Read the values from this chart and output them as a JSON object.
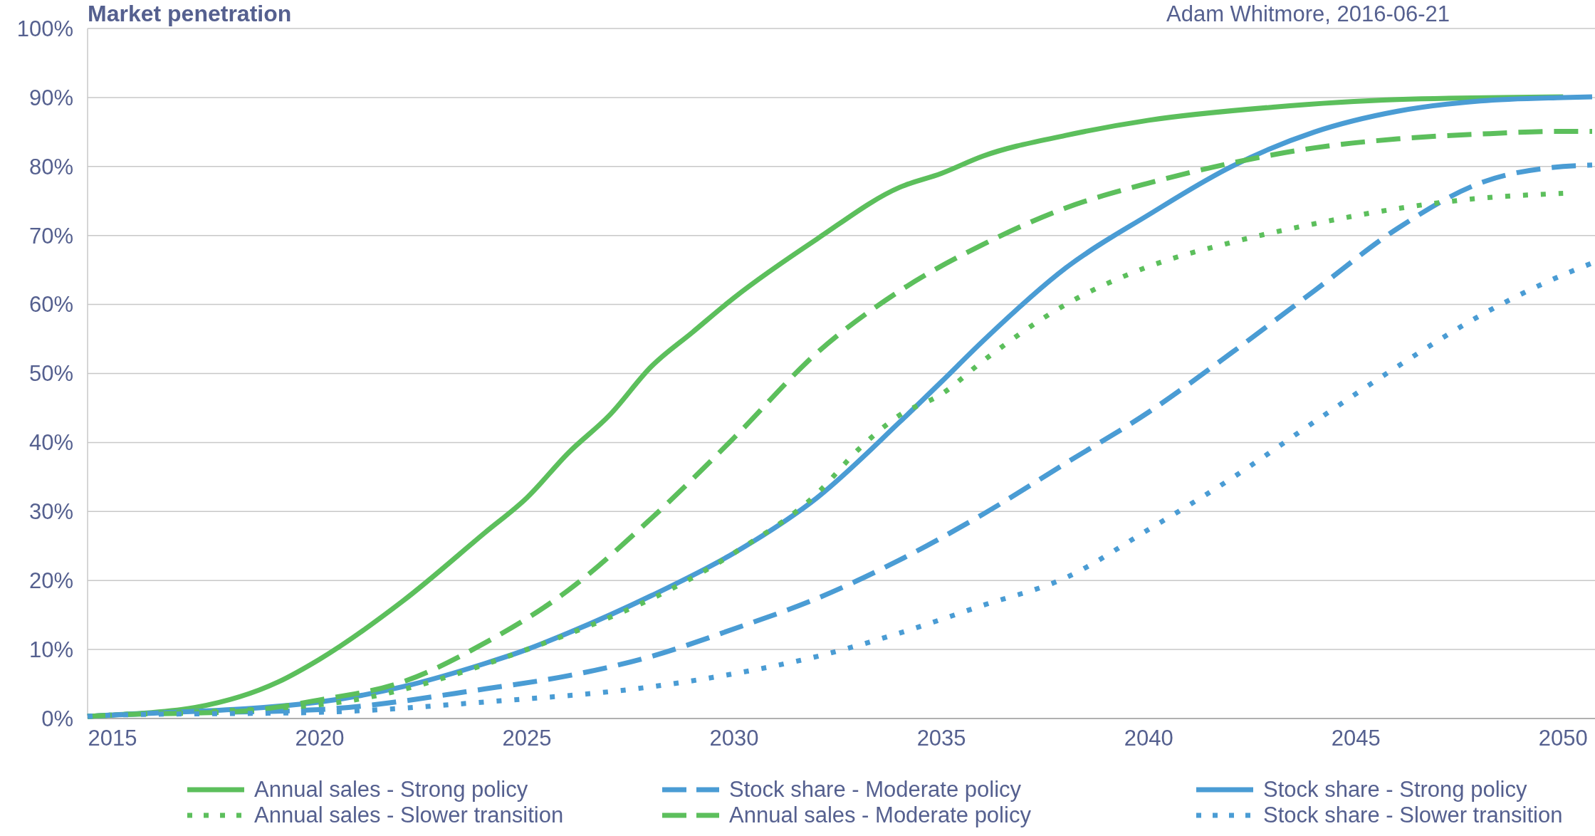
{
  "chart_data": {
    "type": "line",
    "title": "Market penetration",
    "annotations": [
      "Adam Whitmore, 2016-06-21"
    ],
    "xlim": [
      2014.4,
      2050.7
    ],
    "xticks": [
      2015,
      2020,
      2025,
      2030,
      2035,
      2040,
      2045,
      2050
    ],
    "ylim": [
      0,
      100
    ],
    "yticks": [
      {
        "value": 0,
        "label": "0%"
      },
      {
        "value": 10,
        "label": "10%"
      },
      {
        "value": 20,
        "label": "20%"
      },
      {
        "value": 30,
        "label": "30%"
      },
      {
        "value": 40,
        "label": "40%"
      },
      {
        "value": 50,
        "label": "50%"
      },
      {
        "value": 60,
        "label": "60%"
      },
      {
        "value": 70,
        "label": "70%"
      },
      {
        "value": 80,
        "label": "80%"
      },
      {
        "value": 90,
        "label": "90%"
      },
      {
        "value": 100,
        "label": "100%"
      }
    ],
    "grid": "y",
    "legend": "bottom",
    "marker": "none",
    "series": [
      {
        "name": "Annual sales - Strong policy",
        "color": "#5cbf5c",
        "line_style": "solid",
        "x": [
          2014.4,
          2015,
          2017,
          2019,
          2020,
          2022,
          2024,
          2025,
          2026,
          2027,
          2028,
          2029,
          2030,
          2032,
          2034,
          2035,
          2036,
          2038,
          2040,
          2043,
          2046,
          2050
        ],
        "values": [
          0.3,
          0.5,
          1.6,
          5.3,
          8.6,
          17,
          27,
          32,
          38.5,
          44,
          51,
          56,
          61,
          69.5,
          77,
          79,
          81.5,
          84.5,
          86.7,
          88.6,
          89.7,
          90.1
        ]
      },
      {
        "name": "Stock share - Moderate policy",
        "color": "#4a9cd4",
        "line_style": "dashed",
        "x": [
          2014.4,
          2015,
          2020,
          2024,
          2026,
          2028,
          2030,
          2032,
          2034,
          2036,
          2038,
          2040,
          2042,
          2044,
          2046,
          2048,
          2050,
          2050.7
        ],
        "values": [
          0.3,
          0.5,
          1.3,
          4.3,
          6.2,
          9,
          13,
          17.4,
          23,
          29.6,
          37,
          44.4,
          53,
          62,
          71,
          77.6,
          80,
          80.2
        ]
      },
      {
        "name": "Stock share - Strong policy",
        "color": "#4a9cd4",
        "line_style": "solid",
        "x": [
          2014.4,
          2015,
          2020,
          2022,
          2024,
          2025,
          2026,
          2028,
          2030,
          2032,
          2034,
          2035,
          2036,
          2038,
          2040,
          2042,
          2044,
          2046,
          2048,
          2050,
          2050.7
        ],
        "values": [
          0.3,
          0.5,
          2.4,
          4.6,
          8,
          10,
          12.4,
          17.8,
          24,
          32,
          43,
          48.8,
          54.7,
          65.3,
          73,
          80,
          85,
          88,
          89.5,
          90,
          90.1
        ]
      },
      {
        "name": "Annual sales - Slower transition",
        "color": "#5cbf5c",
        "line_style": "dotted",
        "x": [
          2014.4,
          2015,
          2020,
          2025,
          2030,
          2032,
          2033,
          2034,
          2035,
          2036,
          2038,
          2040,
          2042,
          2044,
          2046,
          2048,
          2050
        ],
        "values": [
          0.3,
          0.5,
          2,
          10,
          24,
          32.6,
          39,
          44,
          47,
          51.8,
          60,
          65.5,
          69,
          71.7,
          73.9,
          75.4,
          76.1
        ]
      },
      {
        "name": "Annual sales - Moderate policy",
        "color": "#5cbf5c",
        "line_style": "dashed",
        "x": [
          2014.4,
          2015,
          2018,
          2020,
          2022,
          2024,
          2026,
          2028,
          2030,
          2032,
          2034,
          2036,
          2038,
          2040,
          2042,
          2044,
          2046,
          2048,
          2050,
          2050.7
        ],
        "values": [
          0.3,
          0.5,
          1,
          2.7,
          5.3,
          11,
          18.6,
          29,
          40.7,
          53,
          62,
          68.7,
          74,
          77.6,
          80.5,
          82.7,
          84,
          84.7,
          85.1,
          85.1
        ]
      },
      {
        "name": "Stock share - Slower transition",
        "color": "#4a9cd4",
        "line_style": "dotted",
        "x": [
          2014.4,
          2015,
          2020,
          2024,
          2028,
          2030,
          2032,
          2034,
          2036,
          2038,
          2040,
          2042,
          2044,
          2046,
          2048,
          2050,
          2050.7
        ],
        "values": [
          0.3,
          0.5,
          0.9,
          2.4,
          4.6,
          6.5,
          9,
          12.4,
          16.4,
          20.4,
          27.4,
          34.8,
          43,
          51,
          58.4,
          64.3,
          66
        ]
      }
    ]
  }
}
